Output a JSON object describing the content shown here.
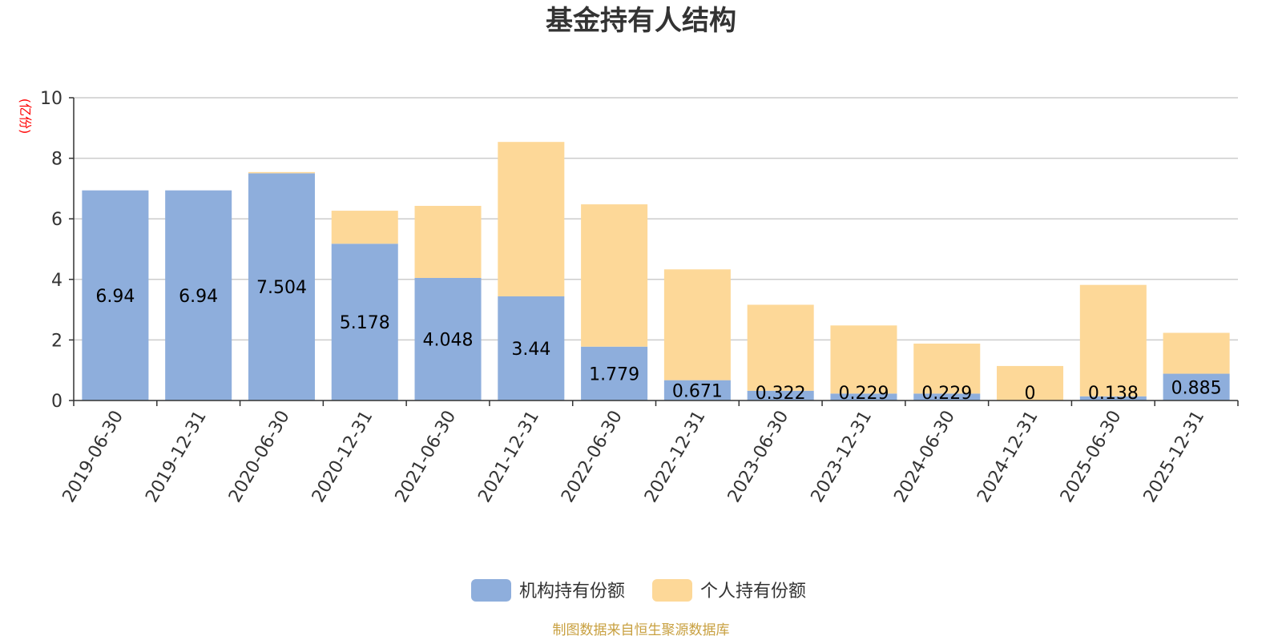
{
  "chart_data": {
    "type": "bar",
    "stacked": true,
    "title": "基金持有人结构",
    "unit_label": "(亿份)",
    "source_text": "制图数据来自恒生聚源数据库",
    "ylim": [
      0,
      10
    ],
    "yticks": [
      0,
      2,
      4,
      6,
      8,
      10
    ],
    "grid": true,
    "legend_position": "bottom",
    "categories": [
      "2019-06-30",
      "2019-12-31",
      "2020-06-30",
      "2020-12-31",
      "2021-06-30",
      "2021-12-31",
      "2022-06-30",
      "2022-12-31",
      "2023-06-30",
      "2023-12-31",
      "2024-06-30",
      "2024-12-31",
      "2025-06-30",
      "2025-12-31"
    ],
    "series": [
      {
        "name": "机构持有份额",
        "color": "#8eaedc",
        "values": [
          6.94,
          6.94,
          7.504,
          5.178,
          4.048,
          3.44,
          1.779,
          0.671,
          0.322,
          0.229,
          0.229,
          0,
          0.138,
          0.885
        ],
        "labels": [
          "6.94",
          "6.94",
          "7.504",
          "5.178",
          "4.048",
          "3.44",
          "1.779",
          "0.671",
          "0.322",
          "0.229",
          "0.229",
          "0",
          "0.138",
          "0.885"
        ]
      },
      {
        "name": "个人持有份额",
        "color": "#fdd898",
        "values": [
          0,
          0,
          0.04,
          1.09,
          2.38,
          5.1,
          4.7,
          3.66,
          2.84,
          2.25,
          1.65,
          1.14,
          3.68,
          1.35
        ]
      }
    ]
  }
}
